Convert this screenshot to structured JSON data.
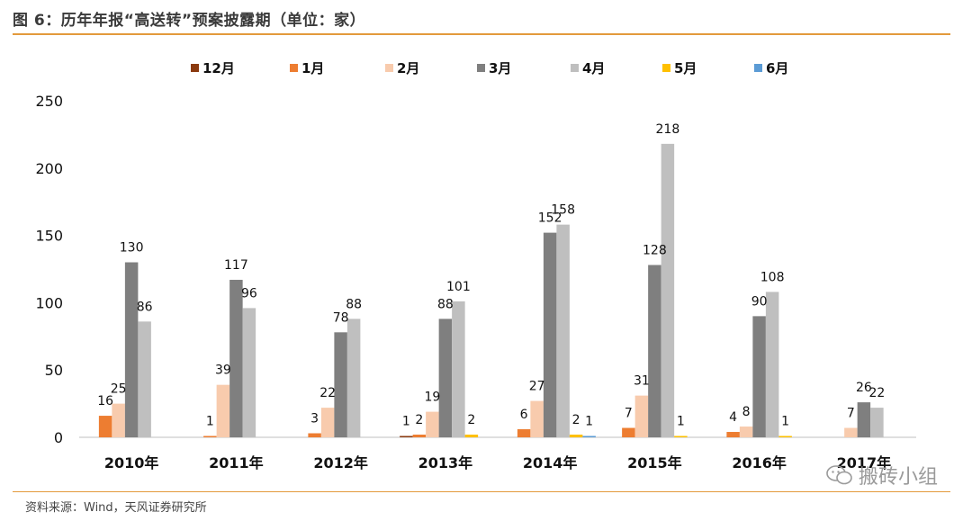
{
  "header": {
    "title": "图 6：历年年报“高送转”预案披露期（单位：家）"
  },
  "footer": {
    "source": "资料来源：Wind，天风证券研究所"
  },
  "watermark": {
    "text": "搬砖小组",
    "icon": "wechat-icon"
  },
  "chart_data": {
    "type": "bar",
    "title": "",
    "xlabel": "",
    "ylabel": "",
    "ylim": [
      0,
      250
    ],
    "yticks": [
      0,
      50,
      100,
      150,
      200,
      250
    ],
    "grid": false,
    "legend_position": "top",
    "categories": [
      "2010年",
      "2011年",
      "2012年",
      "2013年",
      "2014年",
      "2015年",
      "2016年",
      "2017年"
    ],
    "series": [
      {
        "name": "12月",
        "color": "#8B3A0F",
        "values": [
          0,
          0,
          0,
          1,
          0,
          0,
          0,
          0
        ]
      },
      {
        "name": "1月",
        "color": "#ED7D31",
        "values": [
          16,
          1,
          3,
          2,
          6,
          7,
          4,
          0
        ]
      },
      {
        "name": "2月",
        "color": "#F8CBAD",
        "values": [
          25,
          39,
          22,
          19,
          27,
          31,
          8,
          7
        ]
      },
      {
        "name": "3月",
        "color": "#7F7F7F",
        "values": [
          130,
          117,
          78,
          88,
          152,
          128,
          90,
          26
        ]
      },
      {
        "name": "4月",
        "color": "#BFBFBF",
        "values": [
          86,
          96,
          88,
          101,
          158,
          218,
          108,
          22
        ]
      },
      {
        "name": "5月",
        "color": "#FFC000",
        "values": [
          0,
          0,
          0,
          2,
          2,
          1,
          1,
          0
        ]
      },
      {
        "name": "6月",
        "color": "#5B9BD5",
        "values": [
          0,
          0,
          0,
          0,
          1,
          0,
          0,
          0
        ]
      }
    ],
    "data_labels": [
      {
        "category": 0,
        "series": 1,
        "text": "16"
      },
      {
        "category": 0,
        "series": 2,
        "text": "25"
      },
      {
        "category": 0,
        "series": 3,
        "text": "130"
      },
      {
        "category": 0,
        "series": 4,
        "text": "86"
      },
      {
        "category": 1,
        "series": 1,
        "text": "1"
      },
      {
        "category": 1,
        "series": 2,
        "text": "39"
      },
      {
        "category": 1,
        "series": 3,
        "text": "117"
      },
      {
        "category": 1,
        "series": 4,
        "text": "96"
      },
      {
        "category": 2,
        "series": 1,
        "text": "3"
      },
      {
        "category": 2,
        "series": 2,
        "text": "22"
      },
      {
        "category": 2,
        "series": 3,
        "text": "78"
      },
      {
        "category": 2,
        "series": 4,
        "text": "88"
      },
      {
        "category": 3,
        "series": 0,
        "text": "1"
      },
      {
        "category": 3,
        "series": 1,
        "text": "2"
      },
      {
        "category": 3,
        "series": 2,
        "text": "19"
      },
      {
        "category": 3,
        "series": 3,
        "text": "88"
      },
      {
        "category": 3,
        "series": 4,
        "text": "101"
      },
      {
        "category": 3,
        "series": 5,
        "text": "2"
      },
      {
        "category": 4,
        "series": 1,
        "text": "6"
      },
      {
        "category": 4,
        "series": 2,
        "text": "27"
      },
      {
        "category": 4,
        "series": 3,
        "text": "152"
      },
      {
        "category": 4,
        "series": 4,
        "text": "158"
      },
      {
        "category": 4,
        "series": 5,
        "text": "2"
      },
      {
        "category": 4,
        "series": 6,
        "text": "1"
      },
      {
        "category": 5,
        "series": 1,
        "text": "7"
      },
      {
        "category": 5,
        "series": 2,
        "text": "31"
      },
      {
        "category": 5,
        "series": 3,
        "text": "128"
      },
      {
        "category": 5,
        "series": 4,
        "text": "218"
      },
      {
        "category": 5,
        "series": 5,
        "text": "1"
      },
      {
        "category": 6,
        "series": 1,
        "text": "4"
      },
      {
        "category": 6,
        "series": 2,
        "text": "8"
      },
      {
        "category": 6,
        "series": 3,
        "text": "90"
      },
      {
        "category": 6,
        "series": 4,
        "text": "108"
      },
      {
        "category": 6,
        "series": 5,
        "text": "1"
      },
      {
        "category": 7,
        "series": 2,
        "text": "7"
      },
      {
        "category": 7,
        "series": 3,
        "text": "26"
      },
      {
        "category": 7,
        "series": 4,
        "text": "22"
      }
    ]
  }
}
